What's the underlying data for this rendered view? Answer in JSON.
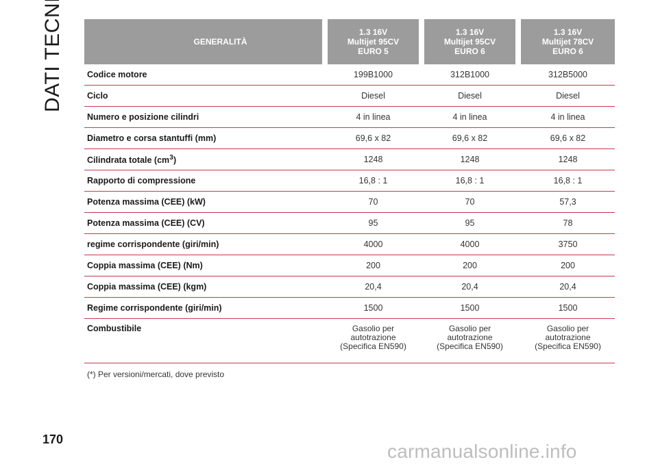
{
  "section_title": "DATI TECNICI",
  "table": {
    "header": {
      "col0": "GENERALITÀ",
      "col1": "1.3 16V\nMultijet 95CV\nEURO 5",
      "col2": "1.3 16V\nMultijet 95CV\nEURO 6",
      "col3": "1.3 16V\nMultijet 78CV\nEURO 6"
    },
    "rows": [
      {
        "label": "Codice motore",
        "v1": "199B1000",
        "v2": "312B1000",
        "v3": "312B5000"
      },
      {
        "label": "Ciclo",
        "v1": "Diesel",
        "v2": "Diesel",
        "v3": "Diesel"
      },
      {
        "label": "Numero e posizione cilindri",
        "v1": "4 in linea",
        "v2": "4 in linea",
        "v3": "4 in linea"
      },
      {
        "label": "Diametro e corsa stantuffi (mm)",
        "v1": "69,6 x 82",
        "v2": "69,6 x 82",
        "v3": "69,6 x 82"
      },
      {
        "label": "Cilindrata totale (cm",
        "label_sup": "3",
        "label_end": ")",
        "v1": "1248",
        "v2": "1248",
        "v3": "1248"
      },
      {
        "label": "Rapporto di compressione",
        "v1": "16,8 : 1",
        "v2": "16,8 : 1",
        "v3": "16,8 : 1"
      },
      {
        "label": "Potenza massima (CEE) (kW)",
        "v1": "70",
        "v2": "70",
        "v3": "57,3"
      },
      {
        "label": "Potenza massima (CEE) (CV)",
        "v1": "95",
        "v2": "95",
        "v3": "78"
      },
      {
        "label": "regime corrispondente (giri/min)",
        "v1": "4000",
        "v2": "4000",
        "v3": "3750"
      },
      {
        "label": "Coppia massima (CEE) (Nm)",
        "v1": "200",
        "v2": "200",
        "v3": "200"
      },
      {
        "label": "Coppia massima (CEE) (kgm)",
        "v1": "20,4",
        "v2": "20,4",
        "v3": "20,4"
      },
      {
        "label": "Regime corrispondente (giri/min)",
        "v1": "1500",
        "v2": "1500",
        "v3": "1500"
      },
      {
        "label": "Combustibile",
        "v1": "Gasolio per\nautotrazione\n(Specifica EN590)",
        "v2": "Gasolio per\nautotrazione\n(Specifica EN590)",
        "v3": "Gasolio per\nautotrazione\n(Specifica EN590)"
      }
    ]
  },
  "footnote": "(*) Per versioni/mercati, dove previsto",
  "page_number": "170",
  "watermark": "carmanualsonline.info"
}
